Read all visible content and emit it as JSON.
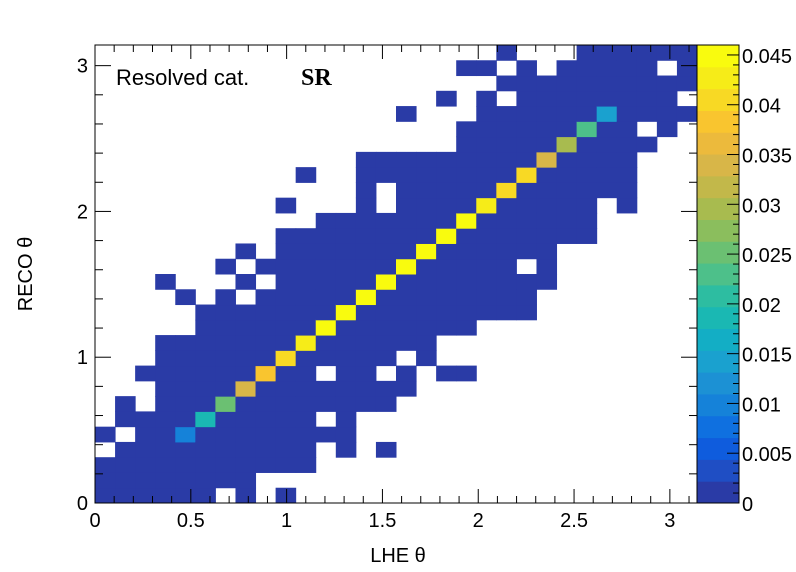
{
  "chart_data": {
    "type": "heatmap",
    "xlabel": "LHE θ",
    "ylabel": "RECO θ",
    "xlim": [
      0,
      3.1416
    ],
    "ylim": [
      0,
      3.1416
    ],
    "xbins": 30,
    "ybins": 30,
    "xticks": [
      "0",
      "0.5",
      "1",
      "1.5",
      "2",
      "2.5",
      "3"
    ],
    "yticks": [
      "0",
      "1",
      "2",
      "3"
    ],
    "zlim": [
      0,
      0.046
    ],
    "zticks": [
      "0",
      "0.005",
      "0.01",
      "0.015",
      "0.02",
      "0.025",
      "0.03",
      "0.035",
      "0.04",
      "0.045"
    ],
    "palette": [
      "#352a87",
      "#2a3ba6",
      "#1f4ec4",
      "#0f5cdd",
      "#0f70e0",
      "#1582d9",
      "#1c91d4",
      "#1aa1cf",
      "#13aec5",
      "#1ab8b3",
      "#2dbda1",
      "#4dc08a",
      "#6bc072",
      "#8bbe5d",
      "#a8bb4f",
      "#c2b84a",
      "#d8b648",
      "#ecba3c",
      "#f9c52f",
      "#f8d924",
      "#f6ec18",
      "#f9fb0e"
    ],
    "annotation_left": "Resolved cat.",
    "annotation_right": "SR",
    "diagonal_peaks": [
      {
        "x_bin": 4,
        "value": 0.012
      },
      {
        "x_bin": 5,
        "value": 0.02
      },
      {
        "x_bin": 6,
        "value": 0.027
      },
      {
        "x_bin": 7,
        "value": 0.035
      },
      {
        "x_bin": 8,
        "value": 0.038
      },
      {
        "x_bin": 9,
        "value": 0.041
      },
      {
        "x_bin": 10,
        "value": 0.042
      },
      {
        "x_bin": 11,
        "value": 0.044
      },
      {
        "x_bin": 12,
        "value": 0.044
      },
      {
        "x_bin": 13,
        "value": 0.045
      },
      {
        "x_bin": 14,
        "value": 0.046
      },
      {
        "x_bin": 15,
        "value": 0.045
      },
      {
        "x_bin": 16,
        "value": 0.045
      },
      {
        "x_bin": 17,
        "value": 0.044
      },
      {
        "x_bin": 18,
        "value": 0.044
      },
      {
        "x_bin": 19,
        "value": 0.042
      },
      {
        "x_bin": 20,
        "value": 0.041
      },
      {
        "x_bin": 21,
        "value": 0.04
      },
      {
        "x_bin": 22,
        "value": 0.035
      },
      {
        "x_bin": 23,
        "value": 0.03
      },
      {
        "x_bin": 24,
        "value": 0.025
      },
      {
        "x_bin": 25,
        "value": 0.016
      }
    ]
  }
}
